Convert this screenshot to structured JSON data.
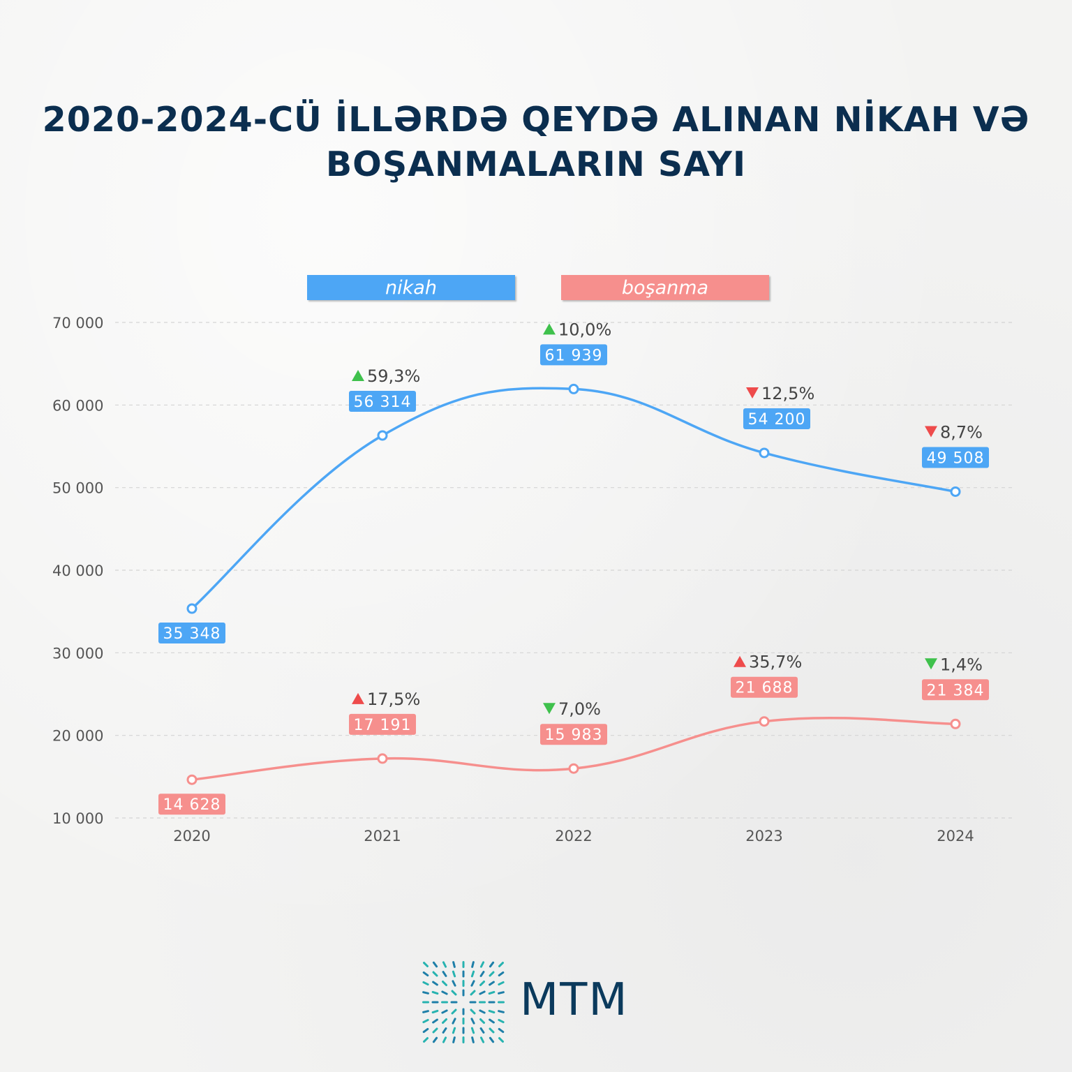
{
  "title": {
    "line1": "2020-2024-CÜ İLLƏRDƏ QEYDƏ ALINAN NİKAH VƏ",
    "line2": "BOŞANMALARIN SAYI"
  },
  "legend": {
    "nikah": "nikah",
    "bosanma": "boşanma"
  },
  "colors": {
    "nikah": "#4da6f5",
    "bosanma": "#f68f8d",
    "up_green": "#3fc14c",
    "down_red": "#ee4b4b",
    "title": "#0b2e4f",
    "axis_text": "#555555"
  },
  "chart_data": {
    "type": "line",
    "title": "2020-2024-CÜ İLLƏRDƏ QEYDƏ ALINAN NİKAH VƏ BOŞANMALARIN SAYI",
    "categories": [
      "2020",
      "2021",
      "2022",
      "2023",
      "2024"
    ],
    "ylim": [
      10000,
      70000
    ],
    "yticks": [
      10000,
      20000,
      30000,
      40000,
      50000,
      60000,
      70000
    ],
    "ytick_labels": [
      "10 000",
      "20 000",
      "30 000",
      "40 000",
      "50 000",
      "60 000",
      "70 000"
    ],
    "grid": true,
    "legend_position": "top",
    "series": [
      {
        "name": "nikah",
        "values": [
          35348,
          56314,
          61939,
          54200,
          49508
        ],
        "value_labels": [
          "35 348",
          "56 314",
          "61 939",
          "54 200",
          "49 508"
        ],
        "changes": [
          null,
          "59,3%",
          "10,0%",
          "12,5%",
          "8,7%"
        ],
        "change_direction": [
          null,
          "up",
          "up",
          "down",
          "down"
        ]
      },
      {
        "name": "boşanma",
        "values": [
          14628,
          17191,
          15983,
          21688,
          21384
        ],
        "value_labels": [
          "14 628",
          "17 191",
          "15 983",
          "21 688",
          "21 384"
        ],
        "changes": [
          null,
          "17,5%",
          "7,0%",
          "35,7%",
          "1,4%"
        ],
        "change_direction": [
          null,
          "up",
          "down",
          "up",
          "down"
        ]
      }
    ]
  },
  "logo": {
    "text": "MTM"
  }
}
